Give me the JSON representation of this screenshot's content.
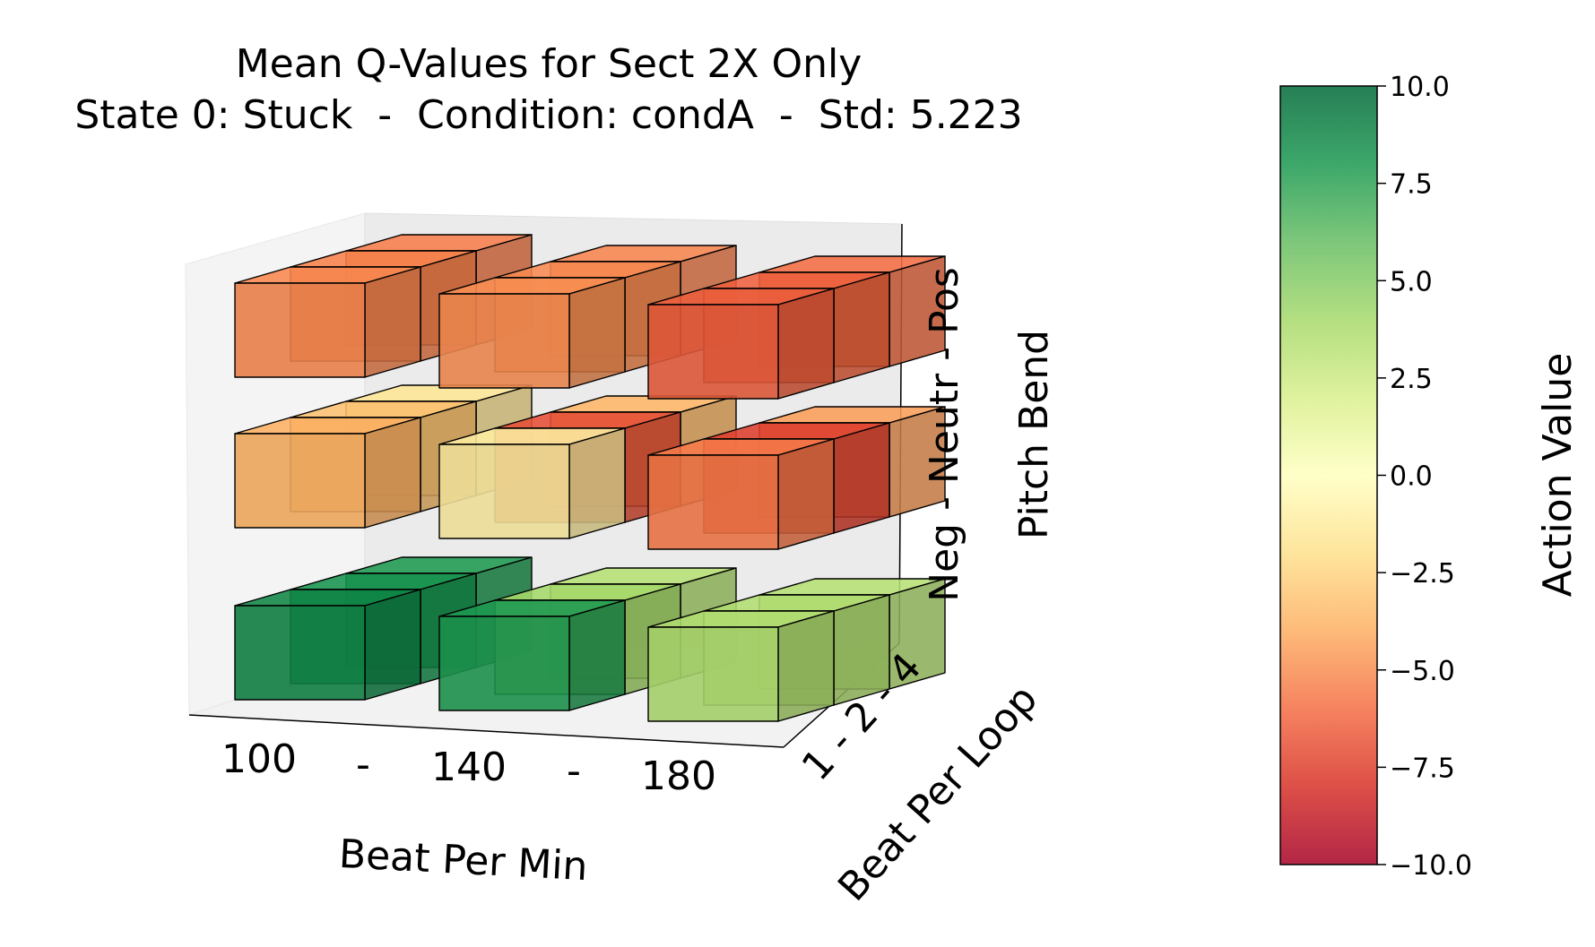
{
  "chart_data": {
    "type": "3d-bar",
    "title": "Mean Q-Values for Sect 2X Only",
    "subtitle": "State 0: Stuck  -  Condition: condA  -  Std: 5.223",
    "x_axis": {
      "label": "Beat Per Min",
      "ticks": [
        "100",
        "-",
        "140",
        "-",
        "180"
      ],
      "categories": [
        "100",
        "140",
        "180"
      ]
    },
    "y_axis": {
      "label": "Beat Per Loop",
      "ticks_label": "1 - 2 - 4",
      "categories": [
        "1",
        "2",
        "4"
      ]
    },
    "z_axis": {
      "label": "Pitch Bend",
      "ticks_label": "Neg - Neutr - Pos",
      "categories": [
        "Neg",
        "Neutr",
        "Pos"
      ]
    },
    "colorbar": {
      "label": "Action Value",
      "min": -10.0,
      "max": 10.0,
      "ticks": [
        "10.0",
        "7.5",
        "5.0",
        "2.5",
        "0.0",
        "−2.5",
        "−5.0",
        "−7.5",
        "−10.0"
      ],
      "colormap": "RdYlGn",
      "stops": [
        "#a50026",
        "#d73027",
        "#f46d43",
        "#fdae61",
        "#fee08b",
        "#ffffbf",
        "#d9ef8b",
        "#a6d96a",
        "#66bd63",
        "#1a9850",
        "#006837"
      ]
    },
    "values": {
      "Pos": [
        [
          -5.2,
          -5.4,
          -5.5
        ],
        [
          -5.0,
          -5.1,
          -5.3
        ],
        [
          -6.5,
          -6.4,
          -6.0
        ]
      ],
      "Neutr": [
        [
          -3.9,
          -3.3,
          -1.6
        ],
        [
          -1.1,
          -7.0,
          -3.7
        ],
        [
          -5.6,
          -7.5,
          -4.5
        ]
      ],
      "Neg": [
        [
          8.8,
          8.2,
          7.9
        ],
        [
          7.9,
          4.0,
          3.4
        ],
        [
          3.6,
          3.6,
          3.4
        ]
      ]
    }
  }
}
